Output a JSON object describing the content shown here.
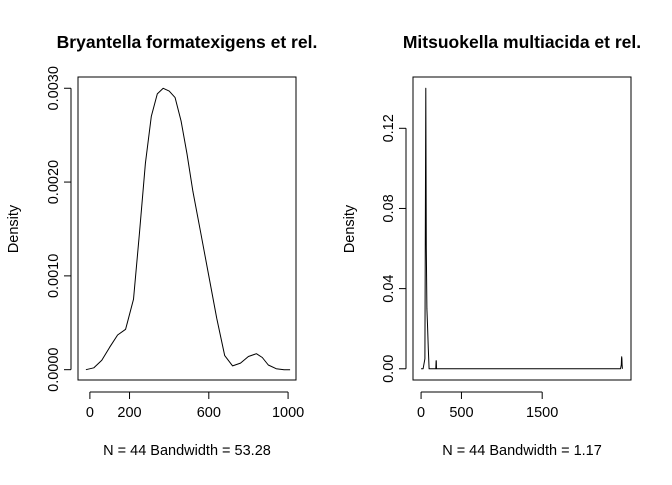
{
  "chart_data": [
    {
      "type": "line",
      "title": "Bryantella formatexigens et rel.",
      "xlabel": "N = 44   Bandwidth = 53.28",
      "ylabel": "Density",
      "xlim": [
        -60,
        1040
      ],
      "ylim": [
        -0.00011,
        0.00312
      ],
      "xticks": [
        0,
        200,
        600,
        1000
      ],
      "xtick_labels": [
        "0",
        "200",
        "600",
        "1000"
      ],
      "yticks": [
        0.0,
        0.001,
        0.002,
        0.003
      ],
      "ytick_labels": [
        "0.0000",
        "0.0010",
        "0.0020",
        "0.0030"
      ],
      "series": [
        {
          "name": "density",
          "x": [
            -20,
            20,
            60,
            100,
            140,
            180,
            220,
            250,
            280,
            310,
            340,
            370,
            400,
            430,
            460,
            490,
            520,
            560,
            600,
            640,
            680,
            720,
            760,
            800,
            840,
            870,
            900,
            940,
            980,
            1010
          ],
          "y": [
            0.0,
            2e-05,
            0.0001,
            0.00024,
            0.00037,
            0.00043,
            0.00075,
            0.00145,
            0.0022,
            0.0027,
            0.00294,
            0.003,
            0.00297,
            0.0029,
            0.00265,
            0.0023,
            0.0019,
            0.00145,
            0.001,
            0.00055,
            0.00015,
            4e-05,
            7e-05,
            0.00014,
            0.00017,
            0.00013,
            5e-05,
            1e-05,
            0.0,
            0.0
          ]
        }
      ]
    },
    {
      "type": "line",
      "title": "Mitsuokella multiacida et rel.",
      "xlabel": "N = 44   Bandwidth = 1.17",
      "ylabel": "Density",
      "xlim": [
        -100,
        2600
      ],
      "ylim": [
        -0.0056,
        0.1456
      ],
      "xticks": [
        0,
        500,
        1500
      ],
      "xtick_labels": [
        "0",
        "500",
        "1500"
      ],
      "yticks": [
        0.0,
        0.04,
        0.08,
        0.12
      ],
      "ytick_labels": [
        "0.00",
        "0.04",
        "0.08",
        "0.12"
      ],
      "series": [
        {
          "name": "density",
          "x": [
            0,
            25,
            48,
            58,
            65,
            72,
            80,
            90,
            100,
            112,
            125,
            135,
            155,
            183,
            186,
            188,
            191,
            195,
            210,
            400,
            800,
            1200,
            1600,
            2000,
            2300,
            2470,
            2480,
            2482,
            2485,
            2487,
            2490,
            2493
          ],
          "y": [
            0.0,
            0.0,
            0.005,
            0.14,
            0.06,
            0.03,
            0.022,
            0.01,
            0.0,
            0.0,
            0.0,
            0.0,
            0.0,
            0.0,
            0.004,
            0.004,
            0.0,
            0.0,
            0.0,
            0.0,
            0.0,
            0.0,
            0.0,
            0.0,
            0.0,
            0.0,
            0.002,
            0.005,
            0.006,
            0.005,
            0.002,
            0.0
          ]
        }
      ]
    }
  ]
}
